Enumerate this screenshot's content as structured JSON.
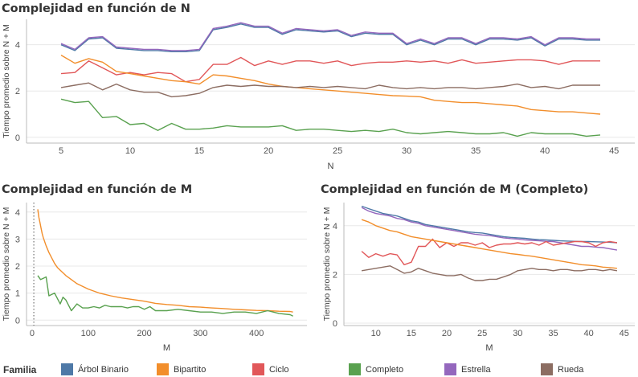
{
  "colors": {
    "axis": "#bbbbbb",
    "grid": "#e8e8e8",
    "tick_text": "#555555",
    "refline": "#555555"
  },
  "legend": {
    "title": "Familia",
    "items": [
      {
        "label": "Árbol Binario",
        "color": "#4e79a7"
      },
      {
        "label": "Bipartito",
        "color": "#f28e2b"
      },
      {
        "label": "Ciclo",
        "color": "#e15759"
      },
      {
        "label": "Completo",
        "color": "#59a14f"
      },
      {
        "label": "Estrella",
        "color": "#9467bd"
      },
      {
        "label": "Rueda",
        "color": "#8c6d62"
      }
    ]
  },
  "chart_data": [
    {
      "type": "line",
      "title": "Complejidad en función de N",
      "xlabel": "N",
      "ylabel": "Tiempo promedio sobre N + M",
      "xlim": [
        2.5,
        46.5
      ],
      "ylim": [
        -0.25,
        5.1
      ],
      "xticks": [
        5,
        10,
        15,
        20,
        25,
        30,
        35,
        40,
        45
      ],
      "yticks": [
        0,
        2,
        4
      ],
      "x": [
        5,
        6,
        7,
        8,
        9,
        10,
        11,
        12,
        13,
        14,
        15,
        16,
        17,
        18,
        19,
        20,
        21,
        22,
        23,
        24,
        25,
        26,
        27,
        28,
        29,
        30,
        31,
        32,
        33,
        34,
        35,
        36,
        37,
        38,
        39,
        40,
        41,
        42,
        43,
        44
      ],
      "series": [
        {
          "name": "Árbol Binario",
          "color": "#4e79a7",
          "values": [
            4.0,
            3.75,
            4.25,
            4.3,
            3.85,
            3.8,
            3.75,
            3.75,
            3.7,
            3.7,
            3.75,
            4.65,
            4.75,
            4.9,
            4.75,
            4.75,
            4.45,
            4.65,
            4.6,
            4.55,
            4.6,
            4.35,
            4.5,
            4.45,
            4.45,
            4.0,
            4.2,
            4.0,
            4.25,
            4.25,
            4.0,
            4.25,
            4.25,
            4.2,
            4.3,
            3.95,
            4.25,
            4.25,
            4.2,
            4.2
          ]
        },
        {
          "name": "Estrella",
          "color": "#9467bd",
          "values": [
            4.05,
            3.8,
            4.3,
            4.35,
            3.9,
            3.85,
            3.8,
            3.8,
            3.75,
            3.75,
            3.8,
            4.7,
            4.8,
            4.95,
            4.8,
            4.8,
            4.5,
            4.7,
            4.65,
            4.6,
            4.65,
            4.4,
            4.55,
            4.5,
            4.5,
            4.05,
            4.25,
            4.05,
            4.3,
            4.3,
            4.05,
            4.3,
            4.3,
            4.25,
            4.35,
            4.0,
            4.3,
            4.3,
            4.25,
            4.25
          ]
        },
        {
          "name": "Ciclo",
          "color": "#e15759",
          "values": [
            2.75,
            2.8,
            3.3,
            3.0,
            2.7,
            2.8,
            2.7,
            2.8,
            2.75,
            2.4,
            2.5,
            3.15,
            3.15,
            3.45,
            3.1,
            3.3,
            3.15,
            3.3,
            3.3,
            3.2,
            3.3,
            3.1,
            3.2,
            3.25,
            3.25,
            3.3,
            3.25,
            3.3,
            3.2,
            3.35,
            3.2,
            3.25,
            3.3,
            3.35,
            3.35,
            3.3,
            3.15,
            3.3,
            3.3,
            3.3
          ]
        },
        {
          "name": "Bipartito",
          "color": "#f28e2b",
          "values": [
            3.55,
            3.2,
            3.4,
            3.25,
            2.85,
            2.75,
            2.65,
            2.55,
            2.45,
            2.4,
            2.3,
            2.7,
            2.65,
            2.55,
            2.45,
            2.3,
            2.2,
            2.15,
            2.1,
            2.05,
            2.0,
            1.95,
            1.9,
            1.85,
            1.8,
            1.78,
            1.75,
            1.6,
            1.55,
            1.5,
            1.5,
            1.45,
            1.4,
            1.35,
            1.2,
            1.15,
            1.1,
            1.1,
            1.05,
            1.0
          ]
        },
        {
          "name": "Rueda",
          "color": "#8c6d62",
          "values": [
            2.15,
            2.25,
            2.35,
            2.05,
            2.3,
            2.05,
            1.95,
            1.95,
            1.75,
            1.8,
            1.9,
            2.15,
            2.25,
            2.2,
            2.25,
            2.2,
            2.2,
            2.15,
            2.2,
            2.15,
            2.2,
            2.15,
            2.1,
            2.25,
            2.15,
            2.1,
            2.15,
            2.1,
            2.15,
            2.15,
            2.1,
            2.15,
            2.2,
            2.3,
            2.15,
            2.2,
            2.1,
            2.25,
            2.25,
            2.25
          ]
        },
        {
          "name": "Completo",
          "color": "#59a14f",
          "values": [
            1.65,
            1.5,
            1.55,
            0.85,
            0.9,
            0.55,
            0.6,
            0.3,
            0.6,
            0.35,
            0.35,
            0.4,
            0.5,
            0.45,
            0.45,
            0.45,
            0.5,
            0.3,
            0.35,
            0.35,
            0.3,
            0.25,
            0.3,
            0.25,
            0.35,
            0.2,
            0.15,
            0.2,
            0.25,
            0.2,
            0.15,
            0.15,
            0.2,
            0.05,
            0.2,
            0.15,
            0.15,
            0.15,
            0.05,
            0.1
          ]
        }
      ]
    },
    {
      "type": "line",
      "title": "Complejidad en función de M",
      "xlabel": "M",
      "ylabel": "Tiempo promedio sobre N + M",
      "xlim": [
        -10,
        490
      ],
      "ylim": [
        -0.2,
        4.35
      ],
      "xticks": [
        0,
        100,
        200,
        300,
        400
      ],
      "yticks": [
        0,
        1,
        2,
        3,
        4
      ],
      "reference_line_x": 3,
      "series": [
        {
          "name": "Bipartito",
          "color": "#f28e2b",
          "x": [
            10,
            12,
            14,
            16,
            18,
            20,
            25,
            30,
            35,
            40,
            45,
            50,
            55,
            60,
            70,
            80,
            90,
            100,
            120,
            140,
            160,
            180,
            200,
            220,
            240,
            260,
            280,
            300,
            320,
            340,
            360,
            380,
            400,
            420,
            440,
            460,
            465
          ],
          "values": [
            4.1,
            3.8,
            3.6,
            3.4,
            3.2,
            3.05,
            2.75,
            2.5,
            2.3,
            2.1,
            1.95,
            1.85,
            1.75,
            1.65,
            1.5,
            1.35,
            1.25,
            1.15,
            1.0,
            0.9,
            0.82,
            0.76,
            0.7,
            0.62,
            0.58,
            0.55,
            0.5,
            0.48,
            0.45,
            0.43,
            0.4,
            0.38,
            0.36,
            0.35,
            0.33,
            0.32,
            0.3
          ]
        },
        {
          "name": "Completo",
          "color": "#59a14f",
          "x": [
            10,
            15,
            20,
            25,
            30,
            40,
            50,
            55,
            60,
            70,
            80,
            90,
            100,
            110,
            120,
            130,
            140,
            150,
            160,
            170,
            180,
            190,
            200,
            210,
            220,
            240,
            260,
            280,
            300,
            320,
            340,
            360,
            380,
            400,
            420,
            440,
            460,
            465
          ],
          "values": [
            1.65,
            1.5,
            1.55,
            1.6,
            0.9,
            1.0,
            0.6,
            0.85,
            0.75,
            0.35,
            0.6,
            0.45,
            0.45,
            0.5,
            0.45,
            0.55,
            0.5,
            0.5,
            0.5,
            0.45,
            0.5,
            0.5,
            0.4,
            0.5,
            0.35,
            0.35,
            0.4,
            0.35,
            0.3,
            0.3,
            0.25,
            0.3,
            0.3,
            0.25,
            0.35,
            0.25,
            0.2,
            0.15
          ]
        }
      ]
    },
    {
      "type": "line",
      "title": "Complejidad en función de M (Completo)",
      "xlabel": "M",
      "ylabel": "Tiempo promedio sobre N + M",
      "xlim": [
        5.5,
        46.5
      ],
      "ylim": [
        -0.1,
        4.95
      ],
      "xticks": [
        10,
        15,
        20,
        25,
        30,
        35,
        40,
        45
      ],
      "yticks": [
        0,
        2,
        4
      ],
      "x": [
        8,
        9,
        10,
        11,
        12,
        13,
        14,
        15,
        16,
        17,
        18,
        19,
        20,
        21,
        22,
        23,
        24,
        25,
        26,
        27,
        28,
        29,
        30,
        31,
        32,
        33,
        34,
        35,
        36,
        37,
        38,
        39,
        40,
        41,
        42,
        43,
        44
      ],
      "series": [
        {
          "name": "Árbol Binario",
          "color": "#4e79a7",
          "values": [
            4.8,
            4.7,
            4.6,
            4.5,
            4.45,
            4.4,
            4.3,
            4.2,
            4.15,
            4.05,
            4.0,
            3.95,
            3.9,
            3.85,
            3.8,
            3.75,
            3.72,
            3.7,
            3.65,
            3.6,
            3.55,
            3.52,
            3.5,
            3.48,
            3.45,
            3.43,
            3.42,
            3.4,
            3.38,
            3.37,
            3.36,
            3.35,
            3.35,
            3.34,
            3.33,
            3.32,
            3.3
          ]
        },
        {
          "name": "Estrella",
          "color": "#9467bd",
          "values": [
            4.75,
            4.6,
            4.5,
            4.45,
            4.4,
            4.3,
            4.25,
            4.15,
            4.1,
            4.0,
            3.95,
            3.9,
            3.85,
            3.8,
            3.75,
            3.7,
            3.65,
            3.62,
            3.6,
            3.55,
            3.5,
            3.47,
            3.45,
            3.42,
            3.4,
            3.38,
            3.36,
            3.35,
            3.3,
            3.25,
            3.2,
            3.15,
            3.15,
            3.12,
            3.1,
            3.05,
            3.0
          ]
        },
        {
          "name": "Ciclo",
          "color": "#e15759",
          "values": [
            2.95,
            2.7,
            2.85,
            2.75,
            2.85,
            2.8,
            2.4,
            2.5,
            3.15,
            3.15,
            3.45,
            3.1,
            3.3,
            3.15,
            3.3,
            3.3,
            3.2,
            3.3,
            3.1,
            3.2,
            3.25,
            3.25,
            3.3,
            3.25,
            3.3,
            3.2,
            3.35,
            3.2,
            3.25,
            3.3,
            3.35,
            3.35,
            3.3,
            3.15,
            3.3,
            3.35,
            3.3
          ]
        },
        {
          "name": "Bipartito",
          "color": "#f28e2b",
          "values": [
            4.25,
            4.15,
            4.0,
            3.9,
            3.8,
            3.75,
            3.65,
            3.55,
            3.5,
            3.45,
            3.4,
            3.35,
            3.3,
            3.25,
            3.2,
            3.15,
            3.1,
            3.05,
            3.0,
            2.95,
            2.9,
            2.85,
            2.82,
            2.78,
            2.75,
            2.7,
            2.65,
            2.6,
            2.55,
            2.5,
            2.45,
            2.4,
            2.38,
            2.35,
            2.3,
            2.28,
            2.25
          ]
        },
        {
          "name": "Rueda",
          "color": "#8c6d62",
          "values": [
            2.15,
            2.2,
            2.25,
            2.3,
            2.35,
            2.2,
            2.05,
            2.1,
            2.25,
            2.15,
            2.05,
            2.0,
            1.95,
            1.95,
            2.0,
            1.85,
            1.75,
            1.75,
            1.8,
            1.8,
            1.9,
            2.0,
            2.15,
            2.2,
            2.25,
            2.2,
            2.2,
            2.15,
            2.2,
            2.2,
            2.15,
            2.15,
            2.2,
            2.2,
            2.15,
            2.2,
            2.15
          ]
        }
      ]
    }
  ]
}
